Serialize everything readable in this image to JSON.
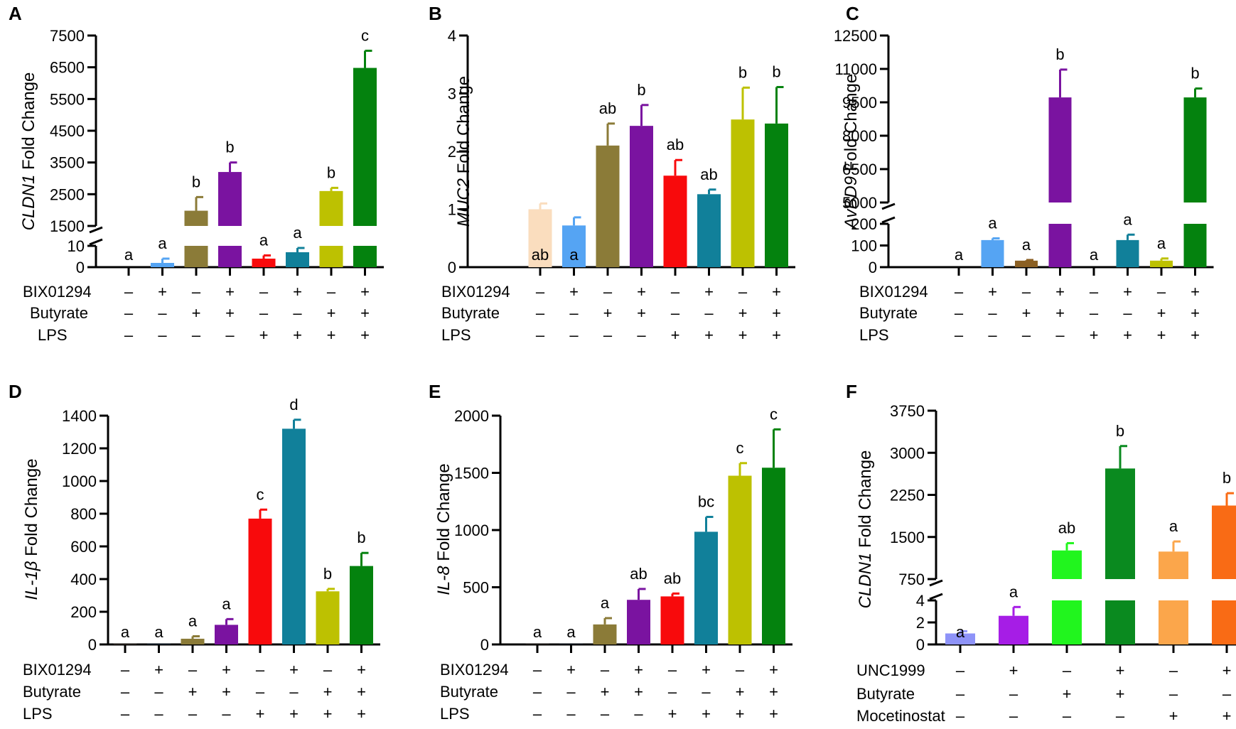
{
  "figure": {
    "panels_shown": "A–F"
  },
  "colors": {
    "peach": "#FADDBE",
    "lightblue": "#55A4F3",
    "olive": "#8B7B38",
    "purple": "#7A13A0",
    "red": "#F80A0C",
    "teal": "#11809A",
    "yellowgreen": "#BDC101",
    "green": "#04820E",
    "brown": "#8B6024",
    "lavender": "#8E93F8",
    "violet": "#A61DE6",
    "brightgreen": "#21F51E",
    "darkgreen": "#0A8A1F",
    "lightorange": "#FBA64B",
    "orange": "#F96B15"
  },
  "chart_data": [
    {
      "panel": "A",
      "type": "bar",
      "ylabel_gene": "CLDN1",
      "ylabel_rest": " Fold Change",
      "axis_break": true,
      "lower_range": [
        0,
        10
      ],
      "upper_range": [
        1500,
        7500
      ],
      "lower_ticks": [
        "0",
        "10"
      ],
      "upper_ticks": [
        "1500",
        "2500",
        "3500",
        "4500",
        "5500",
        "6500",
        "7500"
      ],
      "values": [
        0,
        2,
        1980,
        3200,
        4,
        7,
        2600,
        6480
      ],
      "errors": [
        0,
        2,
        430,
        300,
        1.5,
        2,
        100,
        540
      ],
      "letters": [
        "a",
        "a",
        "b",
        "b",
        "a",
        "a",
        "b",
        "c"
      ],
      "colors": [
        "#FADDBE",
        "#55A4F3",
        "#8B7B38",
        "#7A13A0",
        "#F80A0C",
        "#11809A",
        "#BDC101",
        "#04820E"
      ],
      "rows": [
        {
          "label": "BIX01294",
          "signs": [
            "–",
            "+",
            "–",
            "+",
            "–",
            "+",
            "–",
            "+"
          ]
        },
        {
          "label": "Butyrate",
          "signs": [
            "–",
            "–",
            "+",
            "+",
            "–",
            "–",
            "+",
            "+"
          ]
        },
        {
          "label": "LPS",
          "signs": [
            "–",
            "–",
            "–",
            "–",
            "+",
            "+",
            "+",
            "+"
          ]
        }
      ]
    },
    {
      "panel": "B",
      "type": "bar",
      "ylabel_gene": "MUC2",
      "ylabel_rest": " Fold Change",
      "axis_break": false,
      "ylim": [
        0,
        4
      ],
      "ticks": [
        "0",
        "1",
        "2",
        "3",
        "4"
      ],
      "values": [
        1.0,
        0.72,
        2.1,
        2.44,
        1.58,
        1.26,
        2.55,
        2.48
      ],
      "errors": [
        0.1,
        0.14,
        0.38,
        0.36,
        0.27,
        0.08,
        0.55,
        0.63
      ],
      "letters": [
        "ab",
        "a",
        "ab",
        "b",
        "ab",
        "ab",
        "b",
        "b"
      ],
      "colors": [
        "#FADDBE",
        "#55A4F3",
        "#8B7B38",
        "#7A13A0",
        "#F80A0C",
        "#11809A",
        "#BDC101",
        "#04820E"
      ],
      "rows": [
        {
          "label": "BIX01294",
          "signs": [
            "–",
            "+",
            "–",
            "+",
            "–",
            "+",
            "–",
            "+"
          ]
        },
        {
          "label": "Butyrate",
          "signs": [
            "–",
            "–",
            "+",
            "+",
            "–",
            "–",
            "+",
            "+"
          ]
        },
        {
          "label": "LPS",
          "signs": [
            "–",
            "–",
            "–",
            "–",
            "+",
            "+",
            "+",
            "+"
          ]
        }
      ]
    },
    {
      "panel": "C",
      "type": "bar",
      "ylabel_gene": "AvBD9",
      "ylabel_rest": " Fold Change",
      "axis_break": true,
      "lower_range": [
        0,
        200
      ],
      "upper_range": [
        5000,
        12500
      ],
      "lower_ticks": [
        "0",
        "100",
        "200"
      ],
      "upper_ticks": [
        "5000",
        "6500",
        "8000",
        "9500",
        "11000",
        "12500"
      ],
      "values": [
        0,
        125,
        30,
        9720,
        0,
        125,
        30,
        9720
      ],
      "errors": [
        0,
        8,
        3,
        1250,
        0,
        25,
        10,
        400
      ],
      "letters": [
        "a",
        "a",
        "a",
        "b",
        "a",
        "a",
        "a",
        "b"
      ],
      "colors": [
        "#FADDBE",
        "#55A4F3",
        "#8B6024",
        "#7A13A0",
        "#F80A0C",
        "#11809A",
        "#BDC101",
        "#04820E"
      ],
      "rows": [
        {
          "label": "BIX01294",
          "signs": [
            "–",
            "+",
            "–",
            "+",
            "–",
            "+",
            "–",
            "+"
          ]
        },
        {
          "label": "Butyrate",
          "signs": [
            "–",
            "–",
            "+",
            "+",
            "–",
            "–",
            "+",
            "+"
          ]
        },
        {
          "label": "LPS",
          "signs": [
            "–",
            "–",
            "–",
            "–",
            "+",
            "+",
            "+",
            "+"
          ]
        }
      ]
    },
    {
      "panel": "D",
      "type": "bar",
      "ylabel_gene": "IL-1β",
      "ylabel_rest": " Fold Change",
      "axis_break": false,
      "ylim": [
        0,
        1400
      ],
      "ticks": [
        "0",
        "200",
        "400",
        "600",
        "800",
        "1000",
        "1200",
        "1400"
      ],
      "values": [
        1,
        1,
        35,
        120,
        770,
        1320,
        325,
        480
      ],
      "errors": [
        0,
        0,
        15,
        35,
        55,
        55,
        15,
        80
      ],
      "letters": [
        "a",
        "a",
        "a",
        "a",
        "c",
        "d",
        "b",
        "b"
      ],
      "colors": [
        "#FADDBE",
        "#55A4F3",
        "#8B7B38",
        "#7A13A0",
        "#F80A0C",
        "#11809A",
        "#BDC101",
        "#04820E"
      ],
      "rows": [
        {
          "label": "BIX01294",
          "signs": [
            "–",
            "+",
            "–",
            "+",
            "–",
            "+",
            "–",
            "+"
          ]
        },
        {
          "label": "Butyrate",
          "signs": [
            "–",
            "–",
            "+",
            "+",
            "–",
            "–",
            "+",
            "+"
          ]
        },
        {
          "label": "LPS",
          "signs": [
            "–",
            "–",
            "–",
            "–",
            "+",
            "+",
            "+",
            "+"
          ]
        }
      ]
    },
    {
      "panel": "E",
      "type": "bar",
      "ylabel_gene": "IL-8",
      "ylabel_rest": " Fold Change",
      "axis_break": false,
      "ylim": [
        0,
        2000
      ],
      "ticks": [
        "0",
        "500",
        "1000",
        "1500",
        "2000"
      ],
      "values": [
        1,
        1,
        175,
        390,
        420,
        985,
        1475,
        1545
      ],
      "errors": [
        0,
        0,
        55,
        95,
        25,
        130,
        110,
        335
      ],
      "letters": [
        "a",
        "a",
        "a",
        "ab",
        "ab",
        "bc",
        "c",
        "c"
      ],
      "colors": [
        "#FADDBE",
        "#55A4F3",
        "#8B7B38",
        "#7A13A0",
        "#F80A0C",
        "#11809A",
        "#BDC101",
        "#04820E"
      ],
      "rows": [
        {
          "label": "BIX01294",
          "signs": [
            "–",
            "+",
            "–",
            "+",
            "–",
            "+",
            "–",
            "+"
          ]
        },
        {
          "label": "Butyrate",
          "signs": [
            "–",
            "–",
            "+",
            "+",
            "–",
            "–",
            "+",
            "+"
          ]
        },
        {
          "label": "LPS",
          "signs": [
            "–",
            "–",
            "–",
            "–",
            "+",
            "+",
            "+",
            "+"
          ]
        }
      ]
    },
    {
      "panel": "F",
      "type": "bar",
      "ylabel_gene": "CLDN1",
      "ylabel_rest": " Fold Change",
      "axis_break": true,
      "lower_range": [
        0,
        4
      ],
      "upper_range": [
        750,
        3750
      ],
      "lower_ticks": [
        "0",
        "2",
        "4"
      ],
      "upper_ticks": [
        "750",
        "1500",
        "2250",
        "3000",
        "3750"
      ],
      "values": [
        1,
        2.6,
        1260,
        2720,
        1240,
        2060
      ],
      "errors": [
        0.2,
        0.8,
        130,
        400,
        180,
        220
      ],
      "letters": [
        "a",
        "a",
        "ab",
        "b",
        "a",
        "b"
      ],
      "colors": [
        "#8E93F8",
        "#A61DE6",
        "#21F51E",
        "#0A8A1F",
        "#FBA64B",
        "#F96B15"
      ],
      "rows": [
        {
          "label": "UNC1999",
          "signs": [
            "–",
            "+",
            "–",
            "+",
            "–",
            "+"
          ]
        },
        {
          "label": "Butyrate",
          "signs": [
            "–",
            "–",
            "+",
            "+",
            "–",
            "–"
          ]
        },
        {
          "label": "Mocetinostat",
          "signs": [
            "–",
            "–",
            "–",
            "–",
            "+",
            "+"
          ]
        }
      ]
    }
  ]
}
